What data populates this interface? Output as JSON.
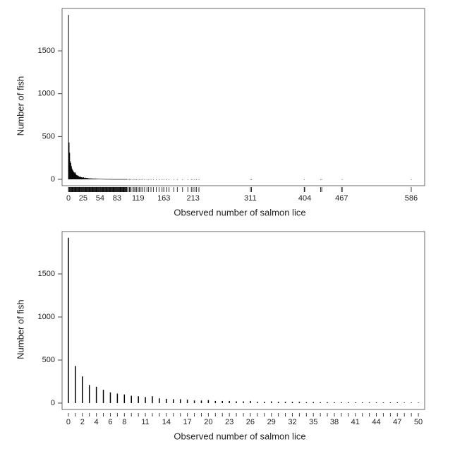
{
  "chart_data": [
    {
      "type": "bar",
      "xlabel": "Observed number of salmon lice",
      "ylabel": "Number of fish",
      "color": "#000000",
      "rug": true,
      "x": [
        0,
        1,
        2,
        3,
        4,
        5,
        6,
        7,
        8,
        9,
        10,
        11,
        12,
        13,
        14,
        15,
        16,
        17,
        18,
        19,
        20,
        21,
        22,
        23,
        24,
        25,
        26,
        27,
        28,
        29,
        30,
        31,
        32,
        33,
        34,
        35,
        36,
        37,
        38,
        39,
        40,
        41,
        42,
        43,
        44,
        45,
        46,
        47,
        48,
        49,
        50,
        51,
        52,
        53,
        54,
        55,
        56,
        57,
        58,
        59,
        60,
        61,
        62,
        63,
        64,
        65,
        66,
        67,
        68,
        69,
        70,
        71,
        72,
        73,
        74,
        75,
        76,
        77,
        78,
        79,
        80,
        81,
        82,
        83,
        84,
        85,
        86,
        87,
        88,
        89,
        90,
        91,
        92,
        93,
        94,
        95,
        96,
        97,
        98,
        99,
        100,
        102,
        104,
        105,
        107,
        110,
        112,
        114,
        116,
        119,
        121,
        124,
        127,
        130,
        134,
        137,
        141,
        145,
        150,
        155,
        160,
        163,
        168,
        172,
        180,
        186,
        195,
        204,
        210,
        213,
        216,
        219,
        223,
        311,
        313,
        403,
        431,
        433,
        468,
        586
      ],
      "values": [
        1920,
        430,
        310,
        210,
        190,
        155,
        125,
        110,
        100,
        85,
        80,
        70,
        80,
        55,
        50,
        45,
        45,
        40,
        30,
        30,
        35,
        25,
        25,
        25,
        20,
        20,
        25,
        15,
        15,
        20,
        15,
        15,
        15,
        15,
        10,
        12,
        10,
        10,
        10,
        10,
        10,
        8,
        8,
        8,
        8,
        8,
        8,
        8,
        6,
        6,
        6,
        6,
        5,
        5,
        5,
        5,
        4,
        4,
        4,
        4,
        4,
        4,
        4,
        3,
        3,
        3,
        3,
        3,
        3,
        3,
        3,
        3,
        3,
        3,
        2,
        2,
        2,
        2,
        2,
        2,
        2,
        2,
        2,
        2,
        2,
        2,
        2,
        2,
        2,
        2,
        2,
        2,
        2,
        2,
        2,
        2,
        2,
        2,
        2,
        2,
        2,
        2,
        2,
        1,
        2,
        1,
        2,
        1,
        1,
        2,
        1,
        1,
        1,
        1,
        1,
        1,
        1,
        1,
        1,
        1,
        1,
        1,
        1,
        1,
        1,
        1,
        1,
        1,
        1,
        1,
        1,
        1,
        1,
        1,
        1,
        1,
        1,
        1,
        1,
        1
      ],
      "xlim": [
        -11,
        609
      ],
      "ylim": [
        -74,
        1995
      ],
      "xticks": [
        0,
        25,
        54,
        83,
        119,
        163,
        213,
        311,
        404,
        467,
        586
      ],
      "yticks": [
        0,
        500,
        1000,
        1500
      ]
    },
    {
      "type": "bar",
      "xlabel": "Observed number of salmon lice",
      "ylabel": "Number of fish",
      "color": "#000000",
      "x": [
        0,
        1,
        2,
        3,
        4,
        5,
        6,
        7,
        8,
        9,
        10,
        11,
        12,
        13,
        14,
        15,
        16,
        17,
        18,
        19,
        20,
        21,
        22,
        23,
        24,
        25,
        26,
        27,
        28,
        29,
        30,
        31,
        32,
        33,
        34,
        35,
        36,
        37,
        38,
        39,
        40,
        41,
        42,
        43,
        44,
        45,
        46,
        47,
        48,
        49,
        50
      ],
      "values": [
        1920,
        430,
        310,
        210,
        190,
        155,
        125,
        110,
        100,
        85,
        80,
        70,
        80,
        55,
        50,
        45,
        45,
        40,
        30,
        30,
        35,
        25,
        25,
        25,
        20,
        20,
        25,
        15,
        15,
        20,
        15,
        15,
        15,
        15,
        10,
        12,
        10,
        10,
        10,
        10,
        10,
        8,
        8,
        8,
        8,
        8,
        8,
        8,
        6,
        6,
        6
      ],
      "xlim": [
        -0.9,
        50.9
      ],
      "ylim": [
        -74,
        1992
      ],
      "xticks": [
        0,
        2,
        4,
        6,
        8,
        11,
        14,
        17,
        20,
        23,
        26,
        29,
        32,
        35,
        38,
        41,
        44,
        47,
        50
      ],
      "minor_xticks": [
        1,
        3,
        5,
        7,
        9,
        10,
        12,
        13,
        15,
        16,
        18,
        19,
        21,
        22,
        24,
        25,
        27,
        28,
        30,
        31,
        33,
        34,
        36,
        37,
        39,
        40,
        42,
        43,
        45,
        46,
        48,
        49
      ],
      "yticks": [
        0,
        500,
        1000,
        1500
      ]
    }
  ]
}
